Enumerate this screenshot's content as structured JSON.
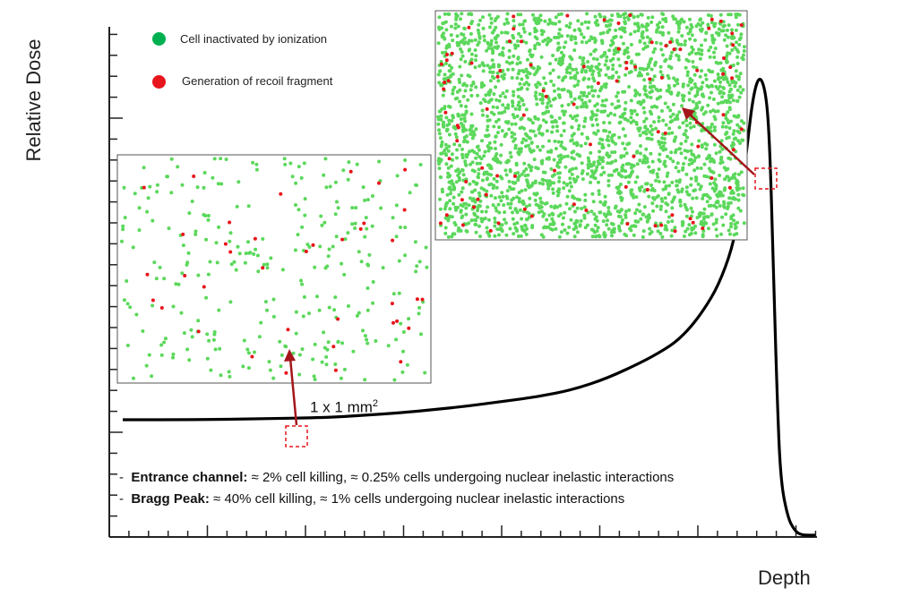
{
  "chart_data": {
    "type": "line",
    "ylabel": "Relative Dose",
    "xlabel": "Depth",
    "series": [
      {
        "x": [
          0,
          10,
          20,
          30,
          35,
          40,
          45,
          50,
          55,
          60,
          65,
          70,
          75,
          78,
          80,
          82,
          84,
          86,
          88,
          89,
          90,
          91,
          92,
          93,
          93.5,
          94,
          94.5,
          95,
          96,
          97,
          98,
          100
        ],
        "y": [
          0.25,
          0.25,
          0.252,
          0.255,
          0.26,
          0.265,
          0.272,
          0.28,
          0.29,
          0.3,
          0.315,
          0.34,
          0.375,
          0.4,
          0.42,
          0.45,
          0.49,
          0.54,
          0.62,
          0.7,
          0.82,
          0.95,
          1.0,
          0.95,
          0.82,
          0.55,
          0.3,
          0.12,
          0.04,
          0.01,
          0.0,
          0.0
        ]
      }
    ],
    "legend": [
      {
        "label": "Cell inactivated by ionization",
        "color": "#00b050"
      },
      {
        "label": "Generation of  recoil fragment",
        "color": "#e8141b"
      }
    ],
    "annotations": {
      "scale": "1 x 1 mm",
      "scale_sup": "2",
      "notes": [
        {
          "bold": "Entrance channel:",
          "text": " ≈ 2% cell killing, ≈ 0.25% cells undergoing nuclear inelastic interactions"
        },
        {
          "bold": "Bragg Peak:",
          "text": " ≈ 40% cell killing, ≈ 1% cells undergoing nuclear inelastic interactions"
        }
      ]
    },
    "insets": [
      {
        "region": "Entrance channel",
        "inactivated_fraction": 0.02,
        "fragment_fraction": 0.0025
      },
      {
        "region": "Bragg Peak",
        "inactivated_fraction": 0.4,
        "fragment_fraction": 0.01
      }
    ]
  },
  "colors": {
    "curve": "#000000",
    "cell_green": "#5bd85b",
    "fragment_red": "#e8141b",
    "arrow": "#a4161a",
    "marker": "#e8141b"
  }
}
